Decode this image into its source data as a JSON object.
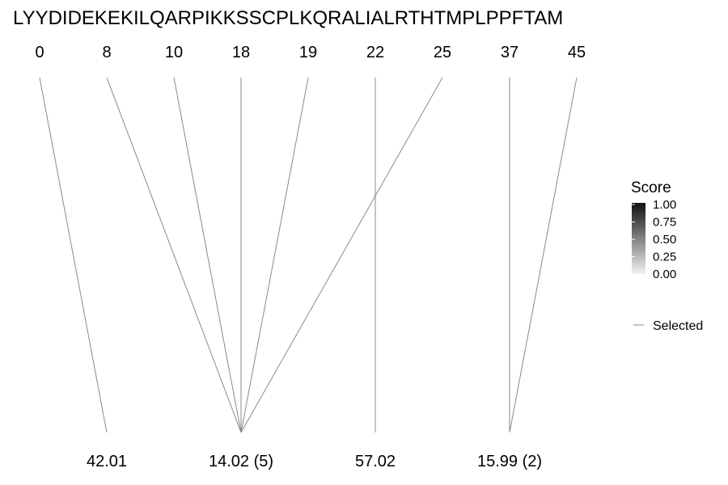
{
  "sequence": "LYYDIDEKEKILQARPIKKSSCPLKQRALIALRTHTMPLPPFTAM",
  "positions": [
    "0",
    "8",
    "10",
    "18",
    "19",
    "22",
    "25",
    "37",
    "45"
  ],
  "masses": [
    "42.01",
    "14.02 (5)",
    "57.02",
    "15.99 (2)"
  ],
  "connections": [
    {
      "position": "0",
      "mass": "42.01"
    },
    {
      "position": "8",
      "mass": "14.02 (5)"
    },
    {
      "position": "10",
      "mass": "14.02 (5)"
    },
    {
      "position": "18",
      "mass": "14.02 (5)"
    },
    {
      "position": "19",
      "mass": "14.02 (5)"
    },
    {
      "position": "25",
      "mass": "14.02 (5)"
    },
    {
      "position": "22",
      "mass": "57.02"
    },
    {
      "position": "37",
      "mass": "15.99 (2)"
    },
    {
      "position": "45",
      "mass": "15.99 (2)"
    }
  ],
  "legend": {
    "title": "Score",
    "ticks": [
      "1.00",
      "0.75",
      "0.50",
      "0.25",
      "0.00"
    ],
    "selected_label": "Selected"
  },
  "colors": {
    "line": "#8a8a8a",
    "text": "#000000",
    "gradient_high": "#111111",
    "gradient_low": "#f2f2f2"
  }
}
